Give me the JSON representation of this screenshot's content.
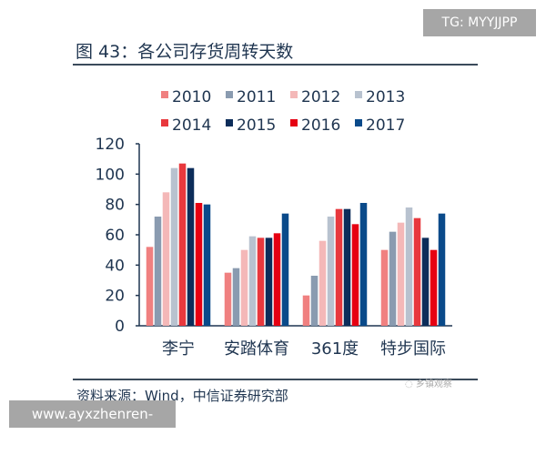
{
  "watermark_top": "TG: MYYJJPP",
  "watermark_bottom": "www.ayxzhenren-we.com",
  "logo_text": "乡镇观察",
  "source": "资料来源：Wind，中信证券研究部",
  "chart_data": {
    "type": "bar",
    "title": "图 43：各公司存货周转天数",
    "xlabel": "",
    "ylabel": "",
    "ylim": [
      0,
      120
    ],
    "yticks": [
      "0",
      "20",
      "40",
      "60",
      "80",
      "100",
      "120"
    ],
    "legend_position": "top",
    "categories": [
      "李宁",
      "安踏体育",
      "361度",
      "特步国际"
    ],
    "series": [
      {
        "name": "2010",
        "color": "#f08080",
        "values": [
          52,
          35,
          20,
          50
        ]
      },
      {
        "name": "2011",
        "color": "#8a9bb0",
        "values": [
          72,
          38,
          33,
          62
        ]
      },
      {
        "name": "2012",
        "color": "#f4b8b8",
        "values": [
          88,
          50,
          56,
          68
        ]
      },
      {
        "name": "2013",
        "color": "#b8c2cf",
        "values": [
          104,
          59,
          72,
          78
        ]
      },
      {
        "name": "2014",
        "color": "#e8383d",
        "values": [
          107,
          58,
          77,
          71
        ]
      },
      {
        "name": "2015",
        "color": "#0c2d5a",
        "values": [
          104,
          58,
          77,
          58
        ]
      },
      {
        "name": "2016",
        "color": "#e60012",
        "values": [
          81,
          61,
          67,
          50
        ]
      },
      {
        "name": "2017",
        "color": "#0a4a8a",
        "values": [
          80,
          74,
          81,
          74
        ]
      }
    ]
  }
}
